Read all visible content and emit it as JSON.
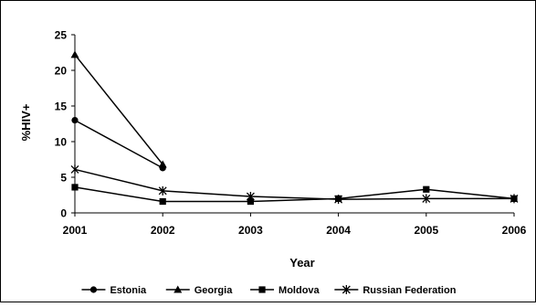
{
  "chart_data": {
    "type": "line",
    "xlabel": "Year",
    "ylabel": "%HIV+",
    "x": [
      2001,
      2002,
      2003,
      2004,
      2005,
      2006
    ],
    "xlim": [
      2001,
      2006
    ],
    "ylim": [
      0,
      25
    ],
    "yticks": [
      0,
      5,
      10,
      15,
      20,
      25
    ],
    "grid": false,
    "legend_position": "bottom",
    "series": [
      {
        "name": "Estonia",
        "marker": "circle",
        "x": [
          2001,
          2002
        ],
        "values": [
          13,
          6.3
        ]
      },
      {
        "name": "Georgia",
        "marker": "triangle",
        "x": [
          2001,
          2002
        ],
        "values": [
          22.2,
          6.8
        ]
      },
      {
        "name": "Moldova",
        "marker": "square",
        "x": [
          2001,
          2002,
          2003,
          2004,
          2005,
          2006
        ],
        "values": [
          3.6,
          1.6,
          1.6,
          2.0,
          3.3,
          2.0
        ]
      },
      {
        "name": "Russian Federation",
        "marker": "asterisk",
        "x": [
          2001,
          2002,
          2003,
          2004,
          2005,
          2006
        ],
        "values": [
          6.1,
          3.1,
          2.3,
          1.9,
          2.0,
          2.0
        ]
      }
    ],
    "colors": {
      "line": "#000000",
      "background": "#ffffff",
      "border": "#000000"
    }
  }
}
